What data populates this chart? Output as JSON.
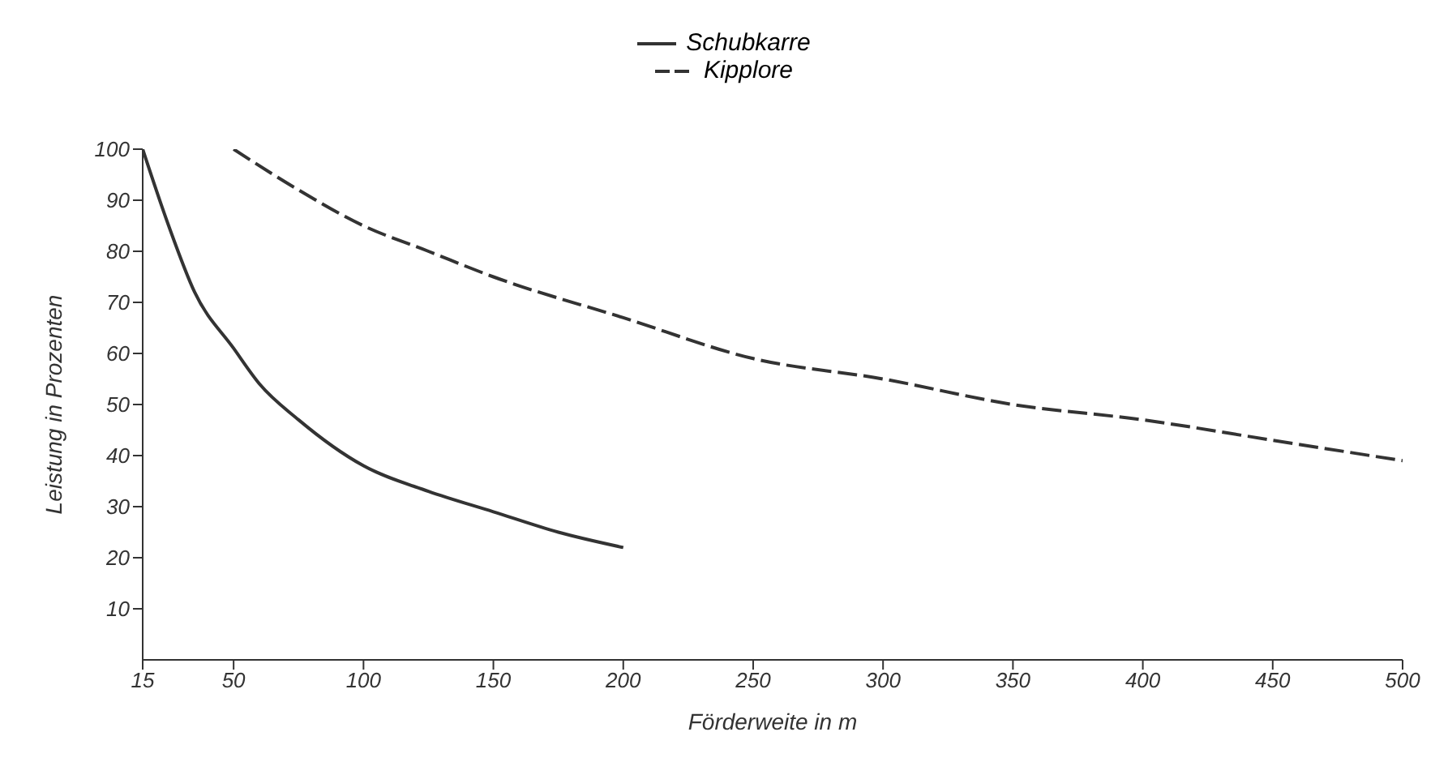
{
  "chart_data": {
    "type": "line",
    "xlabel": "Förderweite in m",
    "ylabel": "Leistung in Prozenten",
    "xlim": [
      15,
      500
    ],
    "xticks": [
      15,
      50,
      100,
      150,
      200,
      250,
      300,
      350,
      400,
      450,
      500
    ],
    "ylim": [
      0,
      100
    ],
    "yticks": [
      10,
      20,
      30,
      40,
      50,
      60,
      70,
      80,
      90,
      100
    ],
    "grid": false,
    "legend": "top",
    "marker": "none",
    "series": [
      {
        "name": "Schubkarre",
        "color": "#333333",
        "line_style": "solid",
        "x": [
          15,
          25,
          35,
          50,
          60,
          75,
          100,
          125,
          150,
          175,
          200
        ],
        "values": [
          100,
          85,
          72,
          61,
          54,
          47,
          38,
          33,
          29,
          25,
          22
        ]
      },
      {
        "name": "Kipplore",
        "color": "#333333",
        "line_style": "dashed",
        "x": [
          50,
          75,
          100,
          125,
          150,
          200,
          250,
          300,
          350,
          400,
          450,
          500
        ],
        "values": [
          100,
          92,
          85,
          80,
          75,
          67,
          59,
          55,
          50,
          47,
          43,
          39
        ]
      }
    ]
  }
}
